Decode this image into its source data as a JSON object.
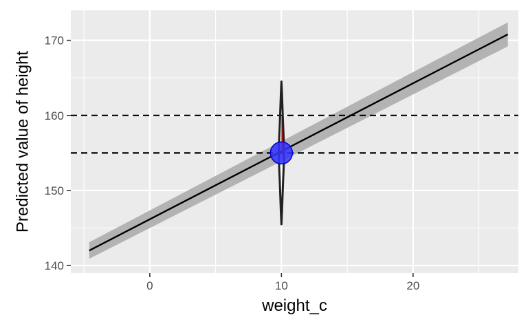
{
  "chart_data": {
    "type": "line",
    "title": "",
    "xlabel": "weight_c",
    "ylabel": "Predicted value of height",
    "xlim": [
      -6.0,
      28.0
    ],
    "ylim": [
      139.0,
      174.0
    ],
    "x_ticks": [
      0,
      10,
      20
    ],
    "x_tick_labels": [
      "0",
      "10",
      "20"
    ],
    "x_minor_ticks": [
      -5,
      5,
      15,
      25
    ],
    "y_ticks": [
      140,
      150,
      160,
      170
    ],
    "y_tick_labels": [
      "140",
      "150",
      "160",
      "170"
    ],
    "y_minor_ticks": [
      145,
      155,
      165
    ],
    "grid": true,
    "background": "#ebebeb",
    "grid_color": "#ffffff",
    "fit_line": {
      "x": [
        -4.6,
        27.2
      ],
      "y": [
        142.0,
        170.8
      ],
      "color": "#000000"
    },
    "confidence_band": {
      "x": [
        -4.6,
        27.2
      ],
      "lower": [
        140.9,
        169.2
      ],
      "upper": [
        143.1,
        172.4
      ],
      "color": "#b3b3b3"
    },
    "reference_lines": [
      {
        "orientation": "horizontal",
        "y": 160,
        "style": "dashed",
        "color": "#000000"
      },
      {
        "orientation": "horizontal",
        "y": 155,
        "style": "dashed",
        "color": "#000000"
      }
    ],
    "point": {
      "x": 10,
      "y": 155,
      "fill": "#3333ff",
      "stroke": "#0000cc"
    },
    "posterior_distribution": {
      "x": 10,
      "y_min": 145.5,
      "y_max": 164.5,
      "density_profile": [
        {
          "y": 145.5,
          "w": 0.0
        },
        {
          "y": 147.0,
          "w": 0.04
        },
        {
          "y": 149.0,
          "w": 0.08
        },
        {
          "y": 151.0,
          "w": 0.12
        },
        {
          "y": 153.0,
          "w": 0.17
        },
        {
          "y": 155.0,
          "w": 0.2
        },
        {
          "y": 157.0,
          "w": 0.17
        },
        {
          "y": 159.0,
          "w": 0.12
        },
        {
          "y": 161.0,
          "w": 0.08
        },
        {
          "y": 163.0,
          "w": 0.04
        },
        {
          "y": 164.5,
          "w": 0.0
        }
      ],
      "outline_color": "#222222",
      "highlight": {
        "y_from": 155,
        "y_to": 160,
        "color": "#ff0000"
      }
    }
  }
}
